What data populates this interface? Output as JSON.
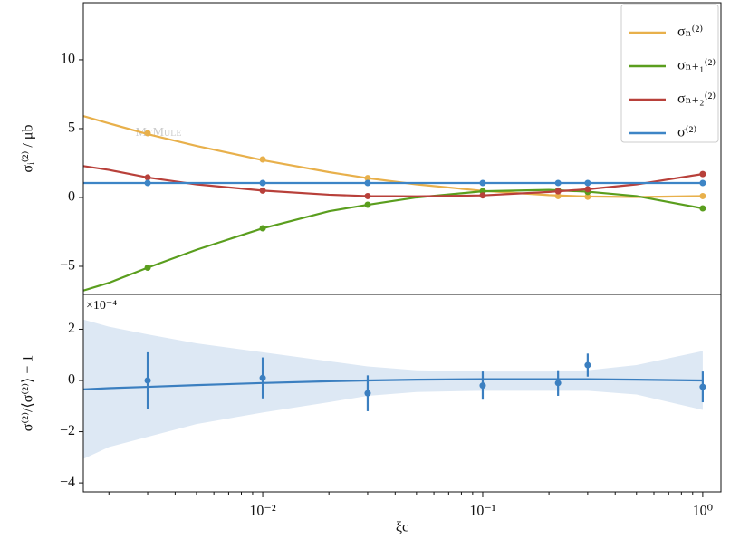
{
  "chart_data": [
    {
      "type": "line",
      "ylabel": "σᵢ⁽²⁾ / μb",
      "watermark": "McMule",
      "log_x": true,
      "x": [
        0.003,
        0.01,
        0.03,
        0.1,
        0.22,
        0.3,
        1
      ],
      "curve_x": [
        0.0015,
        0.002,
        0.003,
        0.005,
        0.01,
        0.02,
        0.03,
        0.05,
        0.1,
        0.2,
        0.3,
        0.5,
        1
      ],
      "xlim": [
        0.00153,
        1.21
      ],
      "ylim": [
        -7.04,
        14.14
      ],
      "yticks": [
        {
          "value": -5,
          "label": "−5"
        },
        0,
        5,
        10
      ],
      "legend": "upper right",
      "series": [
        {
          "name": "σₙ⁽²⁾",
          "color": "#e8b04b",
          "values": [
            4.67,
            2.76,
            1.4,
            0.45,
            0.1,
            0.05,
            0.1
          ],
          "curve": [
            5.95,
            5.38,
            4.6,
            3.74,
            2.71,
            1.84,
            1.4,
            0.95,
            0.48,
            0.17,
            0.07,
            0.03,
            0.1
          ]
        },
        {
          "name": "σₙ₊₁⁽²⁾",
          "color": "#5a9e1e",
          "values": [
            -5.1,
            -2.24,
            -0.53,
            0.45,
            0.5,
            0.4,
            -0.79
          ],
          "curve": [
            -6.8,
            -6.2,
            -5.1,
            -3.8,
            -2.24,
            -1.0,
            -0.53,
            0.0,
            0.45,
            0.55,
            0.42,
            0.1,
            -0.79
          ]
        },
        {
          "name": "σₙ₊₂⁽²⁾",
          "color": "#b8403a",
          "values": [
            1.45,
            0.5,
            0.1,
            0.15,
            0.45,
            0.6,
            1.7
          ],
          "curve": [
            2.3,
            2.0,
            1.45,
            0.95,
            0.5,
            0.2,
            0.1,
            0.08,
            0.15,
            0.4,
            0.6,
            0.95,
            1.7
          ]
        },
        {
          "name": "σ⁽²⁾",
          "color": "#3d85c6",
          "values": [
            1.05,
            1.05,
            1.05,
            1.05,
            1.05,
            1.05,
            1.05
          ],
          "curve": [
            1.05,
            1.05,
            1.05,
            1.05,
            1.05,
            1.05,
            1.05,
            1.05,
            1.05,
            1.05,
            1.05,
            1.05,
            1.05
          ]
        }
      ]
    },
    {
      "type": "errorbar",
      "ylabel": "σ⁽²⁾/⟨σ⁽²⁾⟩ − 1",
      "offset_text": "×10⁻⁴",
      "xlabel": "ξc",
      "log_x": true,
      "color": "#3b7fc0",
      "band_color": "#dde8f4",
      "x": [
        0.003,
        0.01,
        0.03,
        0.1,
        0.22,
        0.3,
        1
      ],
      "values": [
        0.0,
        0.1,
        -0.5,
        -0.2,
        -0.1,
        0.6,
        -0.25
      ],
      "errors": [
        1.1,
        0.8,
        0.7,
        0.55,
        0.5,
        0.45,
        0.6
      ],
      "curve_x": [
        0.0015,
        0.002,
        0.003,
        0.005,
        0.01,
        0.02,
        0.03,
        0.05,
        0.1,
        0.2,
        0.3,
        0.5,
        1
      ],
      "fit": [
        -0.35,
        -0.3,
        -0.25,
        -0.18,
        -0.1,
        -0.03,
        0.0,
        0.03,
        0.05,
        0.05,
        0.05,
        0.03,
        0.0
      ],
      "band_upper": [
        2.4,
        2.1,
        1.8,
        1.45,
        1.1,
        0.75,
        0.55,
        0.4,
        0.35,
        0.35,
        0.4,
        0.6,
        1.15
      ],
      "band_lower": [
        -3.1,
        -2.6,
        -2.2,
        -1.7,
        -1.25,
        -0.85,
        -0.6,
        -0.45,
        -0.4,
        -0.4,
        -0.4,
        -0.55,
        -1.15
      ],
      "xlim": [
        0.00153,
        1.21
      ],
      "ylim": [
        -4.35,
        3.36
      ],
      "yticks": [
        {
          "value": -4,
          "label": "−4"
        },
        {
          "value": -2,
          "label": "−2"
        },
        0,
        2
      ],
      "xticks": [
        {
          "value": 0.01,
          "label": "10⁻²"
        },
        {
          "value": 0.1,
          "label": "10⁻¹"
        },
        {
          "value": 1,
          "label": "10⁰"
        }
      ],
      "xminorticks": [
        0.002,
        0.003,
        0.004,
        0.005,
        0.006,
        0.007,
        0.008,
        0.009,
        0.02,
        0.03,
        0.04,
        0.05,
        0.06,
        0.07,
        0.08,
        0.09,
        0.2,
        0.3,
        0.4,
        0.5,
        0.6,
        0.7,
        0.8,
        0.9
      ]
    }
  ]
}
